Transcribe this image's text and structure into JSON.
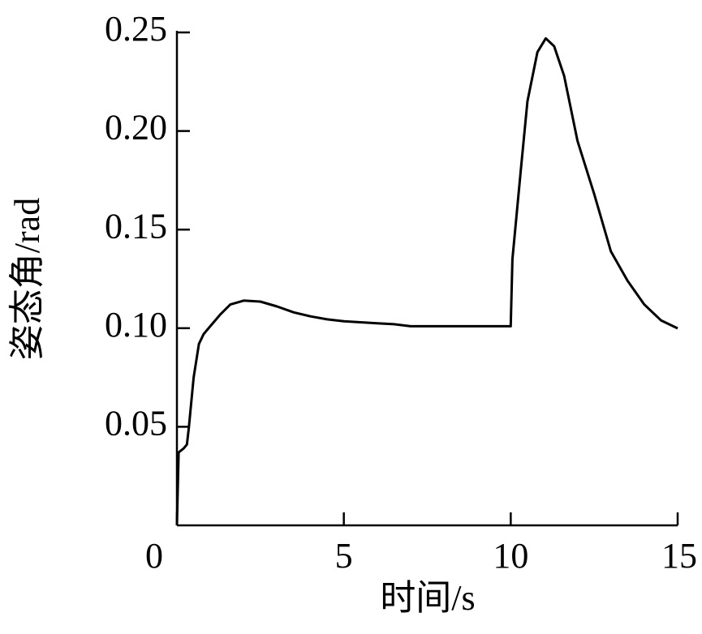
{
  "chart_data": {
    "type": "line",
    "x_label": "时间/s",
    "y_label": "姿态角/rad",
    "xlim": [
      0,
      15
    ],
    "xticks": [
      0,
      5,
      10,
      15
    ],
    "ylim": [
      0,
      0.25
    ],
    "yticks": [
      0.05,
      {
        "value": 0.1,
        "label": "0.10"
      },
      0.15,
      {
        "value": 0.2,
        "label": "0.20"
      },
      0.25
    ],
    "series": [
      {
        "color": "#000000",
        "x": [
          0,
          0.05,
          0.2,
          0.3,
          0.36,
          0.5,
          0.66,
          0.8,
          1.0,
          1.3,
          1.6,
          2.0,
          2.5,
          3,
          3.5,
          4,
          4.5,
          5,
          5.5,
          6,
          6.5,
          7,
          8,
          9,
          10,
          10.05,
          10.3,
          10.5,
          10.8,
          11.05,
          11.3,
          11.6,
          12,
          12.5,
          13,
          13.5,
          14,
          14.5,
          15
        ],
        "values": [
          0.0,
          0.037,
          0.039,
          0.041,
          0.05,
          0.075,
          0.092,
          0.097,
          0.101,
          0.107,
          0.112,
          0.114,
          0.1135,
          0.111,
          0.108,
          0.106,
          0.1045,
          0.1035,
          0.103,
          0.1025,
          0.102,
          0.101,
          0.101,
          0.101,
          0.101,
          0.135,
          0.18,
          0.215,
          0.24,
          0.247,
          0.243,
          0.228,
          0.195,
          0.168,
          0.139,
          0.124,
          0.112,
          0.104,
          0.0999
        ]
      }
    ]
  }
}
